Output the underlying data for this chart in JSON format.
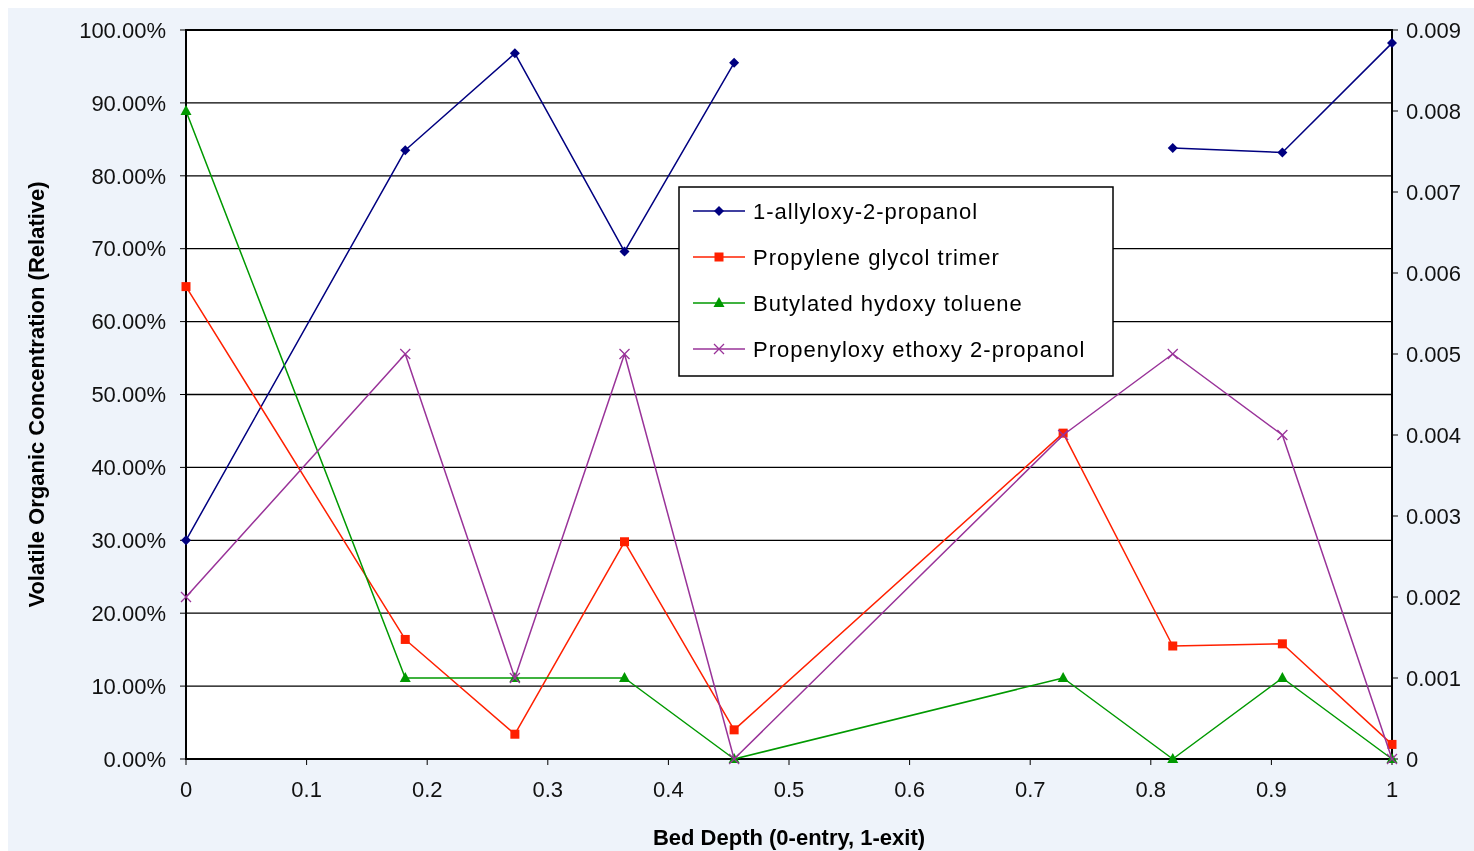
{
  "chart_data": {
    "type": "line",
    "xlabel": "Bed Depth (0-entry, 1-exit)",
    "ylabel": "Volatile Organic Concentration (Relative)",
    "xlim": [
      0,
      1
    ],
    "xticks": [
      0,
      0.1,
      0.2,
      0.3,
      0.4,
      0.5,
      0.6,
      0.7,
      0.8,
      0.9,
      1
    ],
    "ylim": [
      0,
      100
    ],
    "yticks": [
      {
        "value": 0,
        "label": "0.00%"
      },
      {
        "value": 10,
        "label": "10.00%"
      },
      {
        "value": 20,
        "label": "20.00%"
      },
      {
        "value": 30,
        "label": "30.00%"
      },
      {
        "value": 40,
        "label": "40.00%"
      },
      {
        "value": 50,
        "label": "50.00%"
      },
      {
        "value": 60,
        "label": "60.00%"
      },
      {
        "value": 70,
        "label": "70.00%"
      },
      {
        "value": 80,
        "label": "80.00%"
      },
      {
        "value": 90,
        "label": "90.00%"
      },
      {
        "value": 100,
        "label": "100.00%"
      }
    ],
    "y2lim": [
      0,
      0.009
    ],
    "y2ticks": [
      0,
      0.001,
      0.002,
      0.003,
      0.004,
      0.005,
      0.006,
      0.007,
      0.008,
      0.009
    ],
    "grid": "y",
    "legend": "top",
    "series": [
      {
        "name": "1-allyloxy-2-propanol",
        "color": "#000080",
        "marker": "diamond",
        "x": [
          0,
          0.1818,
          0.2727,
          0.3636,
          0.4545,
          0.6364,
          0.7273,
          0.8182,
          0.9091,
          1
        ],
        "values": [
          30,
          83.5,
          96.8,
          69.6,
          95.5,
          null,
          null,
          83.8,
          83.2,
          98.2
        ]
      },
      {
        "name": "Propylene glycol trimer",
        "color": "#ff2000",
        "marker": "square",
        "x": [
          0,
          0.1818,
          0.2727,
          0.3636,
          0.4545,
          0.7273,
          0.8182,
          0.9091,
          1
        ],
        "values": [
          64.8,
          16.4,
          3.4,
          29.8,
          4.0,
          44.7,
          15.5,
          15.8,
          2.0
        ]
      },
      {
        "name": "Butylated hydoxy toluene",
        "color": "#009900",
        "marker": "triangle",
        "axis": "y2",
        "x": [
          0,
          0.1818,
          0.2727,
          0.3636,
          0.4545,
          0.7273,
          0.8182,
          0.9091,
          1
        ],
        "values": [
          0.008,
          0.001,
          0.001,
          0.001,
          0,
          0.001,
          0,
          0.001,
          0
        ]
      },
      {
        "name": "Propenyloxy ethoxy 2-propanol",
        "color": "#993399",
        "marker": "cross",
        "axis": "y2",
        "x": [
          0,
          0.1818,
          0.2727,
          0.3636,
          0.4545,
          0.7273,
          0.8182,
          0.9091,
          1
        ],
        "values": [
          0.002,
          0.005,
          0.001,
          0.005,
          0,
          0.004,
          0.005,
          0.004,
          0
        ]
      }
    ]
  }
}
